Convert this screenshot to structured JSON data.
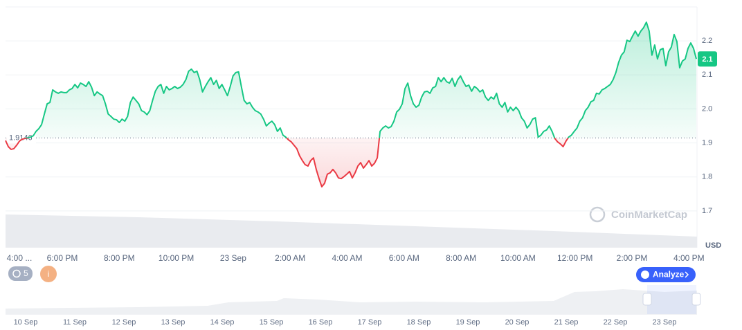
{
  "chart_data": {
    "type": "line",
    "values": [
      1.907,
      1.889,
      1.881,
      1.883,
      1.893,
      1.905,
      1.911,
      1.913,
      1.915,
      1.917,
      1.921,
      1.934,
      1.942,
      1.954,
      1.985,
      2.015,
      2.019,
      2.056,
      2.05,
      2.046,
      2.05,
      2.048,
      2.048,
      2.056,
      2.06,
      2.072,
      2.062,
      2.076,
      2.072,
      2.066,
      2.08,
      2.064,
      2.039,
      2.05,
      2.044,
      2.039,
      2.015,
      1.985,
      1.978,
      1.97,
      1.968,
      1.96,
      1.97,
      1.964,
      1.978,
      2.019,
      2.035,
      2.025,
      2.015,
      1.995,
      1.991,
      1.983,
      1.995,
      2.025,
      2.052,
      2.066,
      2.072,
      2.046,
      2.066,
      2.056,
      2.06,
      2.066,
      2.06,
      2.064,
      2.072,
      2.086,
      2.111,
      2.117,
      2.107,
      2.111,
      2.086,
      2.05,
      2.066,
      2.08,
      2.092,
      2.072,
      2.084,
      2.06,
      2.072,
      2.056,
      2.039,
      2.066,
      2.097,
      2.107,
      2.109,
      2.066,
      2.025,
      2.015,
      2.019,
      2.005,
      1.995,
      1.991,
      1.985,
      1.97,
      1.95,
      1.958,
      1.964,
      1.954,
      1.934,
      1.944,
      1.923,
      1.917,
      1.909,
      1.903,
      1.893,
      1.883,
      1.862,
      1.848,
      1.836,
      1.832,
      1.848,
      1.856,
      1.822,
      1.795,
      1.771,
      1.781,
      1.808,
      1.812,
      1.822,
      1.812,
      1.797,
      1.795,
      1.801,
      1.808,
      1.816,
      1.797,
      1.812,
      1.832,
      1.842,
      1.826,
      1.836,
      1.848,
      1.832,
      1.84,
      1.856,
      1.934,
      1.944,
      1.95,
      1.944,
      1.948,
      1.964,
      1.991,
      1.999,
      2.015,
      2.06,
      2.076,
      2.039,
      2.015,
      2.005,
      2.011,
      2.035,
      2.05,
      2.052,
      2.046,
      2.062,
      2.066,
      2.092,
      2.08,
      2.092,
      2.08,
      2.076,
      2.09,
      2.066,
      2.086,
      2.097,
      2.08,
      2.066,
      2.07,
      2.052,
      2.066,
      2.06,
      2.05,
      2.056,
      2.035,
      2.025,
      2.035,
      2.029,
      2.046,
      2.015,
      2.005,
      2.019,
      1.991,
      2.005,
      1.995,
      2.005,
      1.995,
      1.974,
      1.964,
      1.944,
      1.954,
      1.97,
      1.974,
      1.917,
      1.923,
      1.934,
      1.938,
      1.95,
      1.934,
      1.913,
      1.903,
      1.897,
      1.889,
      1.905,
      1.917,
      1.923,
      1.934,
      1.944,
      1.964,
      1.974,
      1.995,
      2.005,
      2.021,
      2.025,
      2.046,
      2.044,
      2.056,
      2.06,
      2.066,
      2.072,
      2.086,
      2.107,
      2.137,
      2.158,
      2.168,
      2.202,
      2.198,
      2.214,
      2.229,
      2.214,
      2.229,
      2.239,
      2.255,
      2.229,
      2.158,
      2.188,
      2.147,
      2.174,
      2.178,
      2.127,
      2.168,
      2.182,
      2.219,
      2.198,
      2.121,
      2.141,
      2.147,
      2.178,
      2.194,
      2.178,
      2.147
    ],
    "color_up": "#16c784",
    "color_down": "#ea3943",
    "baseline": 1.9146,
    "last_price_label": "2.1",
    "ylim": [
      1.6,
      2.3
    ],
    "yticks": [
      1.7,
      1.8,
      1.9,
      {
        "value": 2,
        "label": "2.0"
      },
      2.1,
      2.2
    ],
    "grid": true,
    "y_unit": "USD",
    "xtick_labels": [
      "4:00 ...",
      "6:00 PM",
      "8:00 PM",
      "10:00 PM",
      "23 Sep",
      "2:00 AM",
      "4:00 AM",
      "6:00 AM",
      "8:00 AM",
      "10:00 AM",
      "12:00 PM",
      "2:00 PM",
      "4:00 PM"
    ],
    "watermark": "CoinMarketCap",
    "toolbar": {
      "history_count": 5,
      "info": "i",
      "analyze": "Analyze"
    },
    "navigator_dates": [
      "10 Sep",
      "11 Sep",
      "12 Sep",
      "13 Sep",
      "14 Sep",
      "15 Sep",
      "16 Sep",
      "17 Sep",
      "18 Sep",
      "19 Sep",
      "20 Sep",
      "21 Sep",
      "22 Sep",
      "23 Sep"
    ]
  }
}
